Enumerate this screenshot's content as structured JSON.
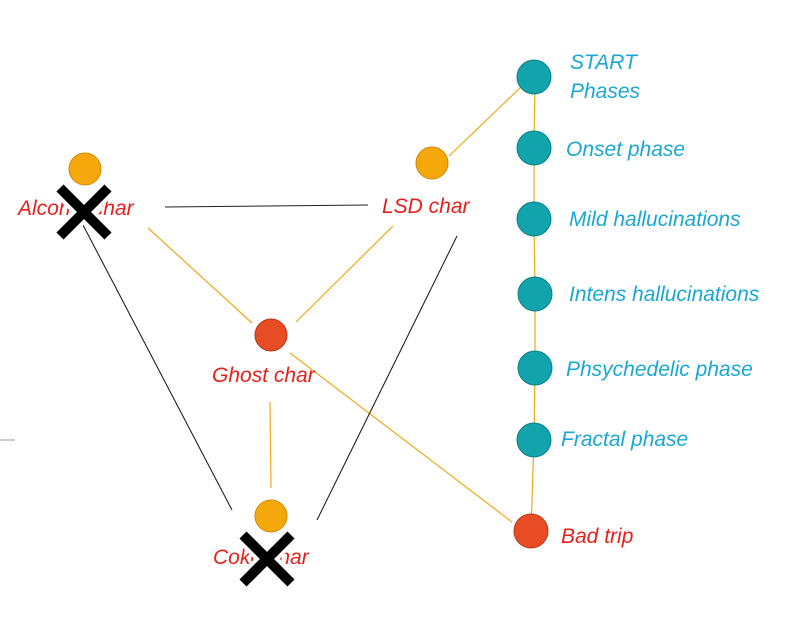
{
  "colors": {
    "orange_node": "#f5a80b",
    "orange_stroke": "#d08a00",
    "teal_node": "#12a4ad",
    "teal_stroke": "#0d7f86",
    "red_node": "#e84c24",
    "red_stroke": "#b7381a",
    "red_text": "#e8201c",
    "blue_text": "#1aa7d6",
    "orange_edge": "#f0a818",
    "black_edge": "#222222"
  },
  "characters": {
    "alcohol": "Alcohol char",
    "lsd": "LSD char",
    "ghost": "Ghost char",
    "coke": "Coke char"
  },
  "phases": {
    "start_line1": "START",
    "start_line2": "Phases",
    "onset": "Onset phase",
    "mild": "Mild hallucinations",
    "intens": "Intens hallucinations",
    "psychedelic": "Phsychedelic phase",
    "fractal": "Fractal phase",
    "bad_trip": "Bad trip"
  },
  "icons": {
    "crossed_out": "x-mark-icon"
  }
}
